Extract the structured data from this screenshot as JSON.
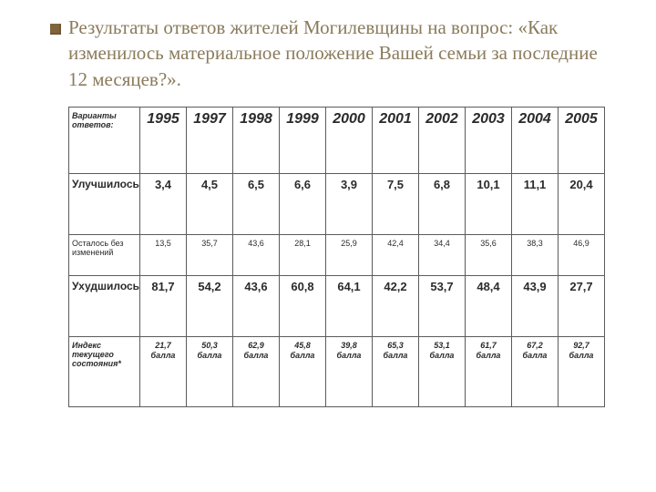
{
  "title": "Результаты ответов жителей Могилевщины на вопрос: «Как изменилось материальное положение Вашей семьи за последние 12 месяцев?».",
  "table": {
    "headerLabel": "Варианты ответов:",
    "years": [
      "1995",
      "1997",
      "1998",
      "1999",
      "2000",
      "2001",
      "2002",
      "2003",
      "2004",
      "2005"
    ],
    "r1": {
      "label": "Улучшилось",
      "vals": [
        "3,4",
        "4,5",
        "6,5",
        "6,6",
        "3,9",
        "7,5",
        "6,8",
        "10,1",
        "11,1",
        "20,4"
      ]
    },
    "r2": {
      "label": "Осталось без изменений",
      "vals": [
        "13,5",
        "35,7",
        "43,6",
        "28,1",
        "25,9",
        "42,4",
        "34,4",
        "35,6",
        "38,3",
        "46,9"
      ]
    },
    "r3": {
      "label": "Ухудшилось",
      "vals": [
        "81,7",
        "54,2",
        "43,6",
        "60,8",
        "64,1",
        "42,2",
        "53,7",
        "48,4",
        "43,9",
        "27,7"
      ]
    },
    "r4": {
      "label": "Индекс текущего состояния*",
      "pts": [
        "21,7",
        "50,3",
        "62,9",
        "45,8",
        "39,8",
        "65,3",
        "53,1",
        "61,7",
        "67,2",
        "92,7"
      ],
      "unit": "балла"
    }
  },
  "colors": {
    "bullet": "#80643e",
    "titleText": "#8a7b5c",
    "border": "#5b5b5b",
    "text": "#2b2b2b",
    "background": "#ffffff"
  }
}
